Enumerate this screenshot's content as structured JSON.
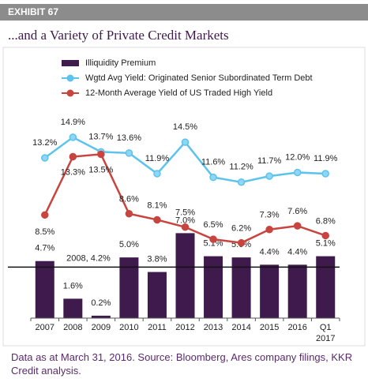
{
  "header": {
    "exhibit": "EXHIBIT 67"
  },
  "chart_data": {
    "type": "combo",
    "title": "...and a Variety of Private Credit Markets",
    "categories": [
      "2007",
      "2008",
      "2009",
      "2010",
      "2011",
      "2012",
      "2013",
      "2014",
      "2015",
      "2016",
      "Q1 2017"
    ],
    "ylim": [
      0,
      16
    ],
    "series": [
      {
        "name": "Illiquidity Premium",
        "type": "bar",
        "color": "#3f1a4c",
        "values": [
          4.7,
          1.6,
          0.2,
          5.0,
          3.8,
          7.0,
          5.1,
          5.0,
          4.4,
          4.4,
          5.1
        ],
        "value_labels": [
          "4.7%",
          "1.6%",
          "0.2%",
          "5.0%",
          "3.8%",
          "7.0%",
          "5.1%",
          "5.0%",
          "4.4%",
          "4.4%",
          "5.1%"
        ]
      },
      {
        "name": "Wgtd Avg Yield: Originated Senior Subordinated Term Debt",
        "type": "line",
        "color": "#5cc3ec",
        "values": [
          13.2,
          14.9,
          13.7,
          13.6,
          11.9,
          14.5,
          11.6,
          11.2,
          11.7,
          12.0,
          11.9
        ],
        "value_labels": [
          "13.2%",
          "14.9%",
          "13.7%",
          "13.6%",
          "11.9%",
          "14.5%",
          "11.6%",
          "11.2%",
          "11.7%",
          "12.0%",
          "11.9%"
        ]
      },
      {
        "name": "12-Month Average Yield of US Traded High Yield",
        "type": "line",
        "color": "#c8443f",
        "values": [
          8.5,
          13.3,
          13.5,
          8.6,
          8.1,
          7.5,
          6.5,
          6.2,
          7.3,
          7.6,
          6.8
        ],
        "value_labels": [
          "8.5%",
          "13.3%",
          "13.5%",
          "8.6%",
          "8.1%",
          "7.5%",
          "6.5%",
          "6.2%",
          "7.3%",
          "7.6%",
          "6.8%"
        ]
      }
    ],
    "reference_line": {
      "value": 4.2,
      "label": "2008, 4.2%"
    },
    "note": "Data as at March 31, 2016. Source: Bloomberg, Ares company filings, KKR Credit analysis."
  }
}
